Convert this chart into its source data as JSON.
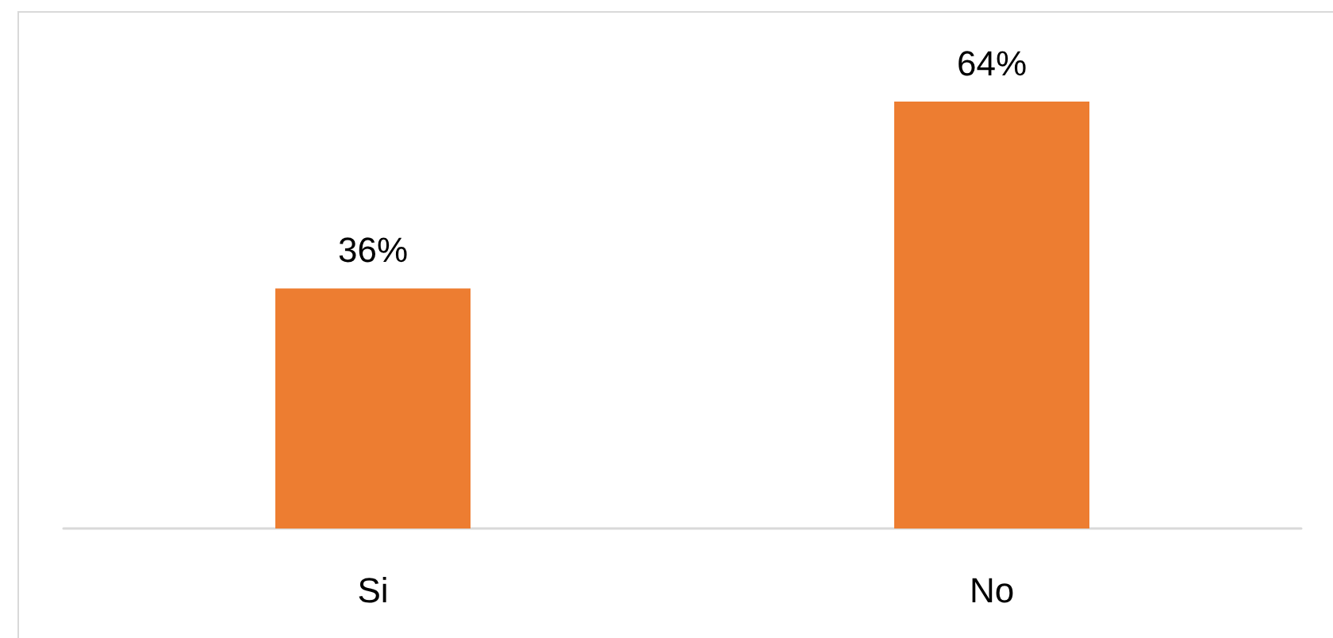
{
  "chart_data": {
    "type": "bar",
    "categories": [
      "Si",
      "No"
    ],
    "values": [
      36,
      64
    ],
    "color": "#ed7d31",
    "value_labels": [
      "36%",
      "64%"
    ],
    "tick_labels": "x"
  }
}
